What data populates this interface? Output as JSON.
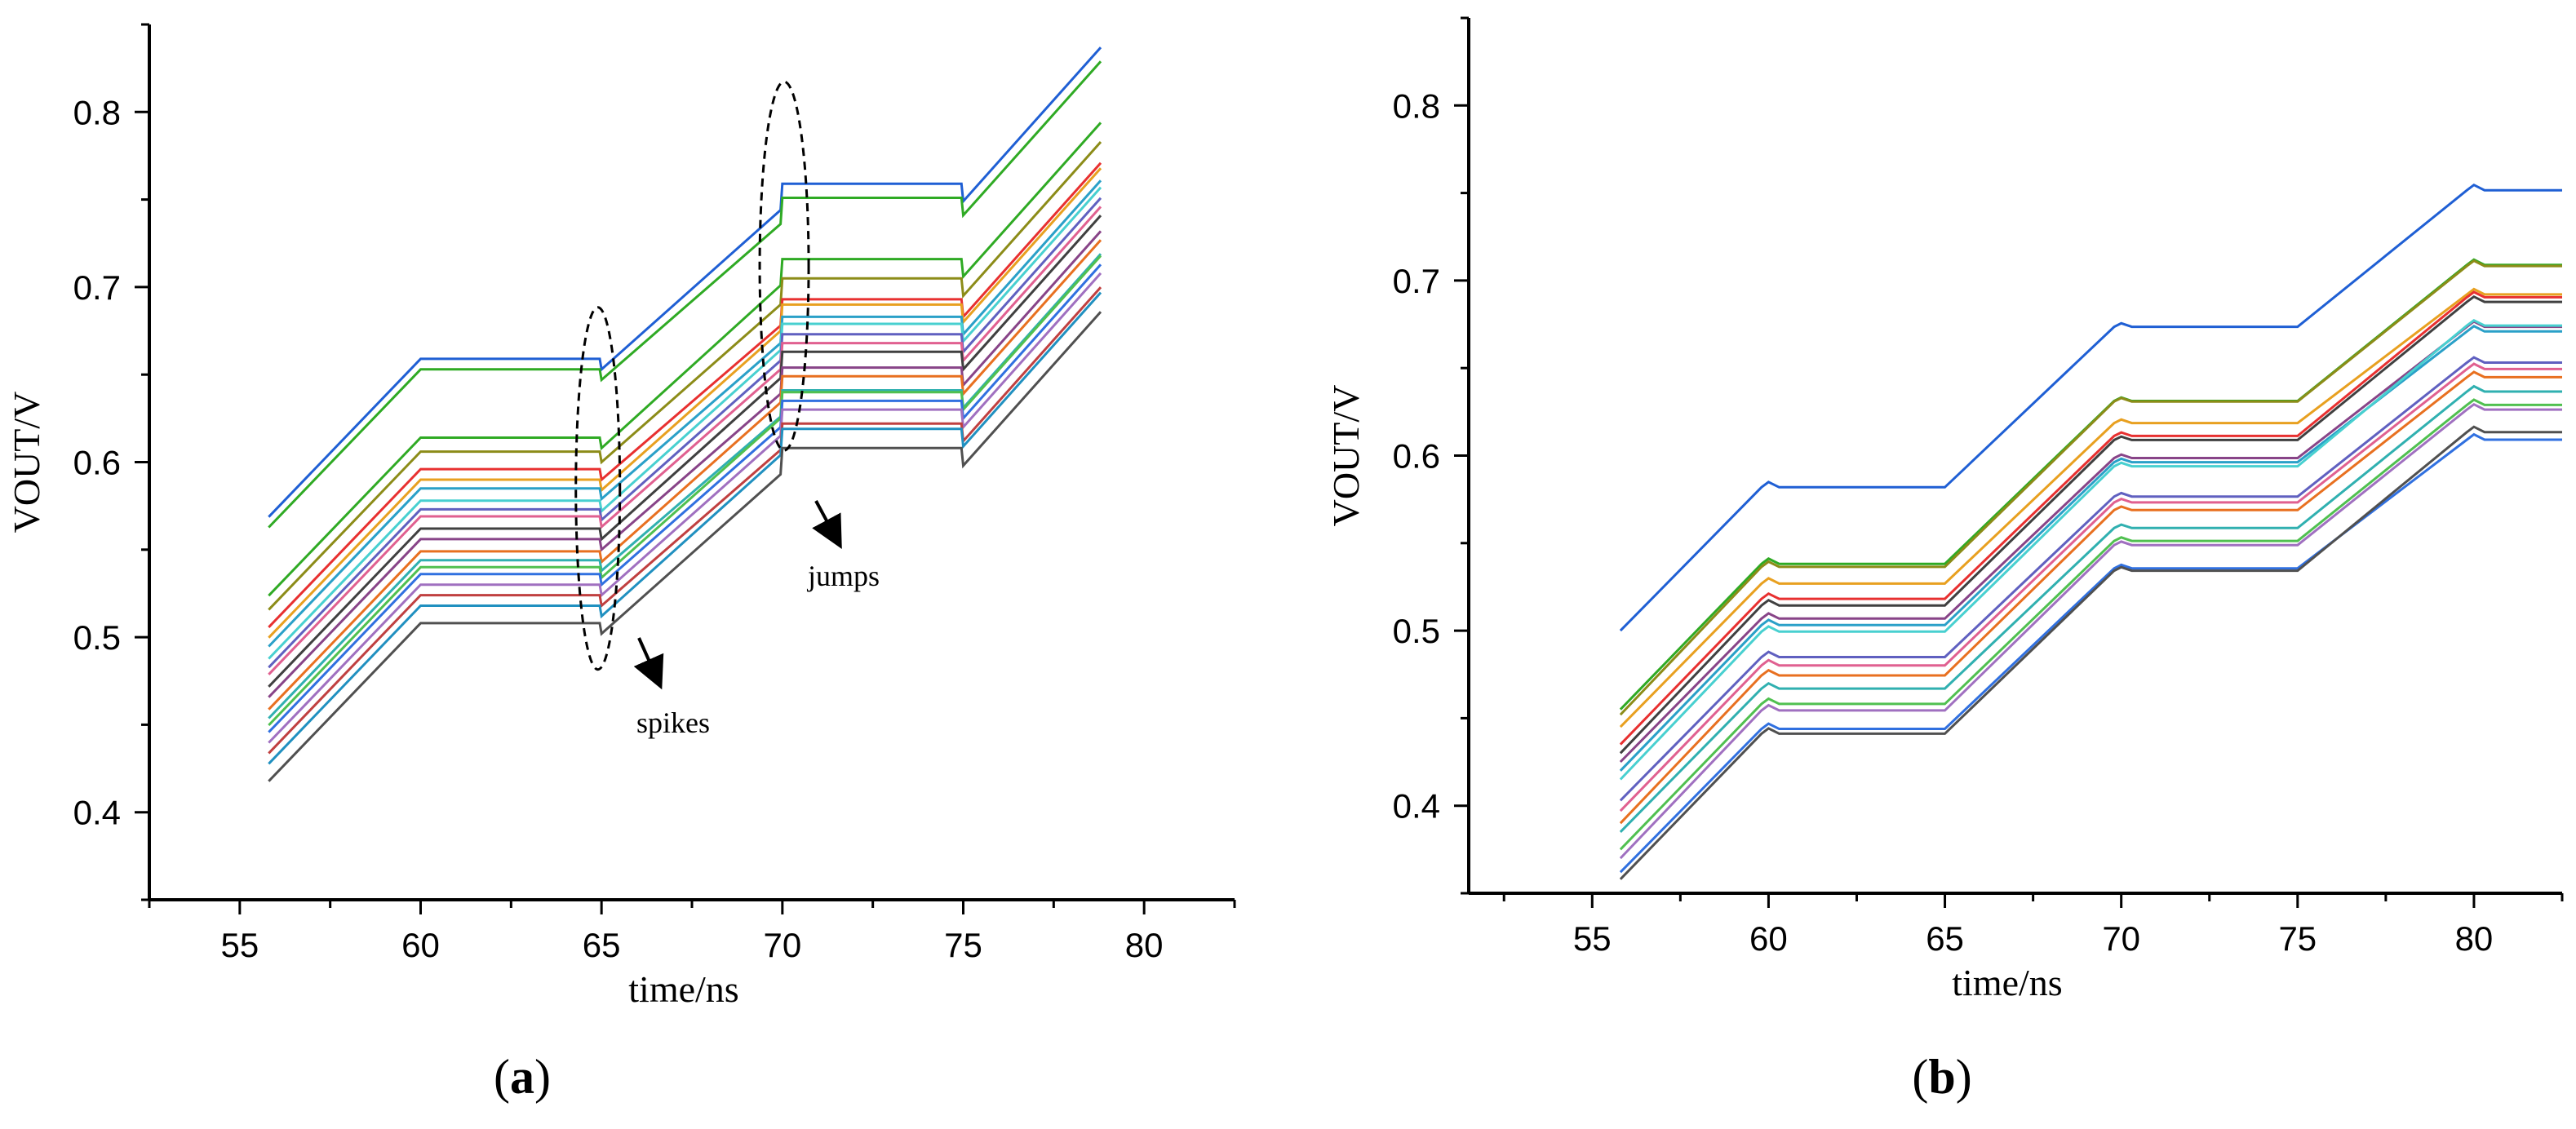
{
  "chart_data": [
    {
      "panel": "(a)",
      "panel_letter": "a",
      "type": "line",
      "title": "",
      "xlabel": "time/ns",
      "ylabel": "VOUT/V",
      "xlim": [
        52.5,
        82.5
      ],
      "ylim": [
        0.35,
        0.85
      ],
      "xticks": [
        55,
        60,
        65,
        70,
        75,
        80
      ],
      "yticks": [
        0.4,
        0.5,
        0.6,
        0.7,
        0.8
      ],
      "grid": false,
      "x_range": [
        55.8,
        78.8
      ],
      "segments_x": [
        55.8,
        60,
        65,
        70,
        75,
        78.8
      ],
      "plateau_values": [
        0.659,
        0.653,
        0.614,
        0.606,
        0.596,
        0.59,
        0.585,
        0.578,
        0.573,
        0.569,
        0.562,
        0.556,
        0.549,
        0.544,
        0.54,
        0.536,
        0.53,
        0.524,
        0.518,
        0.508
      ],
      "offsets_after_70": [
        0.1,
        0.098,
        0.102,
        0.099,
        0.097,
        0.1,
        0.098,
        0.101,
        0.1,
        0.099,
        0.101,
        0.098,
        0.1,
        0.097,
        0.1,
        0.099,
        0.1,
        0.098,
        0.101,
        0.1
      ],
      "series_colors": [
        "#1f5fd4",
        "#2faa24",
        "#2faa24",
        "#8c8c18",
        "#e83030",
        "#e8a020",
        "#2aa0c8",
        "#48d0d0",
        "#6060c0",
        "#e06090",
        "#404040",
        "#884488",
        "#e87020",
        "#30b0b0",
        "#50c050",
        "#3070e0",
        "#a070c0",
        "#c04040",
        "#2090c0",
        "#505050"
      ],
      "annotations": [
        {
          "text": "spikes",
          "x": 64.9,
          "y": 0.585
        },
        {
          "text": "jumps",
          "x": 70.0,
          "y": 0.712
        }
      ]
    },
    {
      "panel": "(b)",
      "panel_letter": "b",
      "type": "line",
      "title": "",
      "xlabel": "time/ns",
      "ylabel": "VOUT/V",
      "xlim": [
        51.5,
        82.5
      ],
      "ylim": [
        0.35,
        0.85
      ],
      "xticks": [
        55,
        60,
        65,
        70,
        75,
        80
      ],
      "yticks": [
        0.4,
        0.5,
        0.6,
        0.7,
        0.8
      ],
      "grid": false,
      "x_range": [
        55.8,
        82.5
      ],
      "segments_x": [
        55.8,
        60,
        65,
        70,
        75,
        80,
        82.5
      ],
      "start_values": [
        0.5,
        0.455,
        0.452,
        0.445,
        0.435,
        0.43,
        0.425,
        0.42,
        0.415,
        0.403,
        0.397,
        0.39,
        0.385,
        0.375,
        0.37,
        0.362,
        0.358
      ],
      "series_colors": [
        "#1f5fd4",
        "#2faa24",
        "#8c8c18",
        "#e8a020",
        "#e83030",
        "#404040",
        "#884488",
        "#2aa0c8",
        "#48d0d0",
        "#6060c0",
        "#e06090",
        "#e87020",
        "#30b0b0",
        "#50c050",
        "#a070c0",
        "#3070e0",
        "#505050"
      ]
    }
  ]
}
